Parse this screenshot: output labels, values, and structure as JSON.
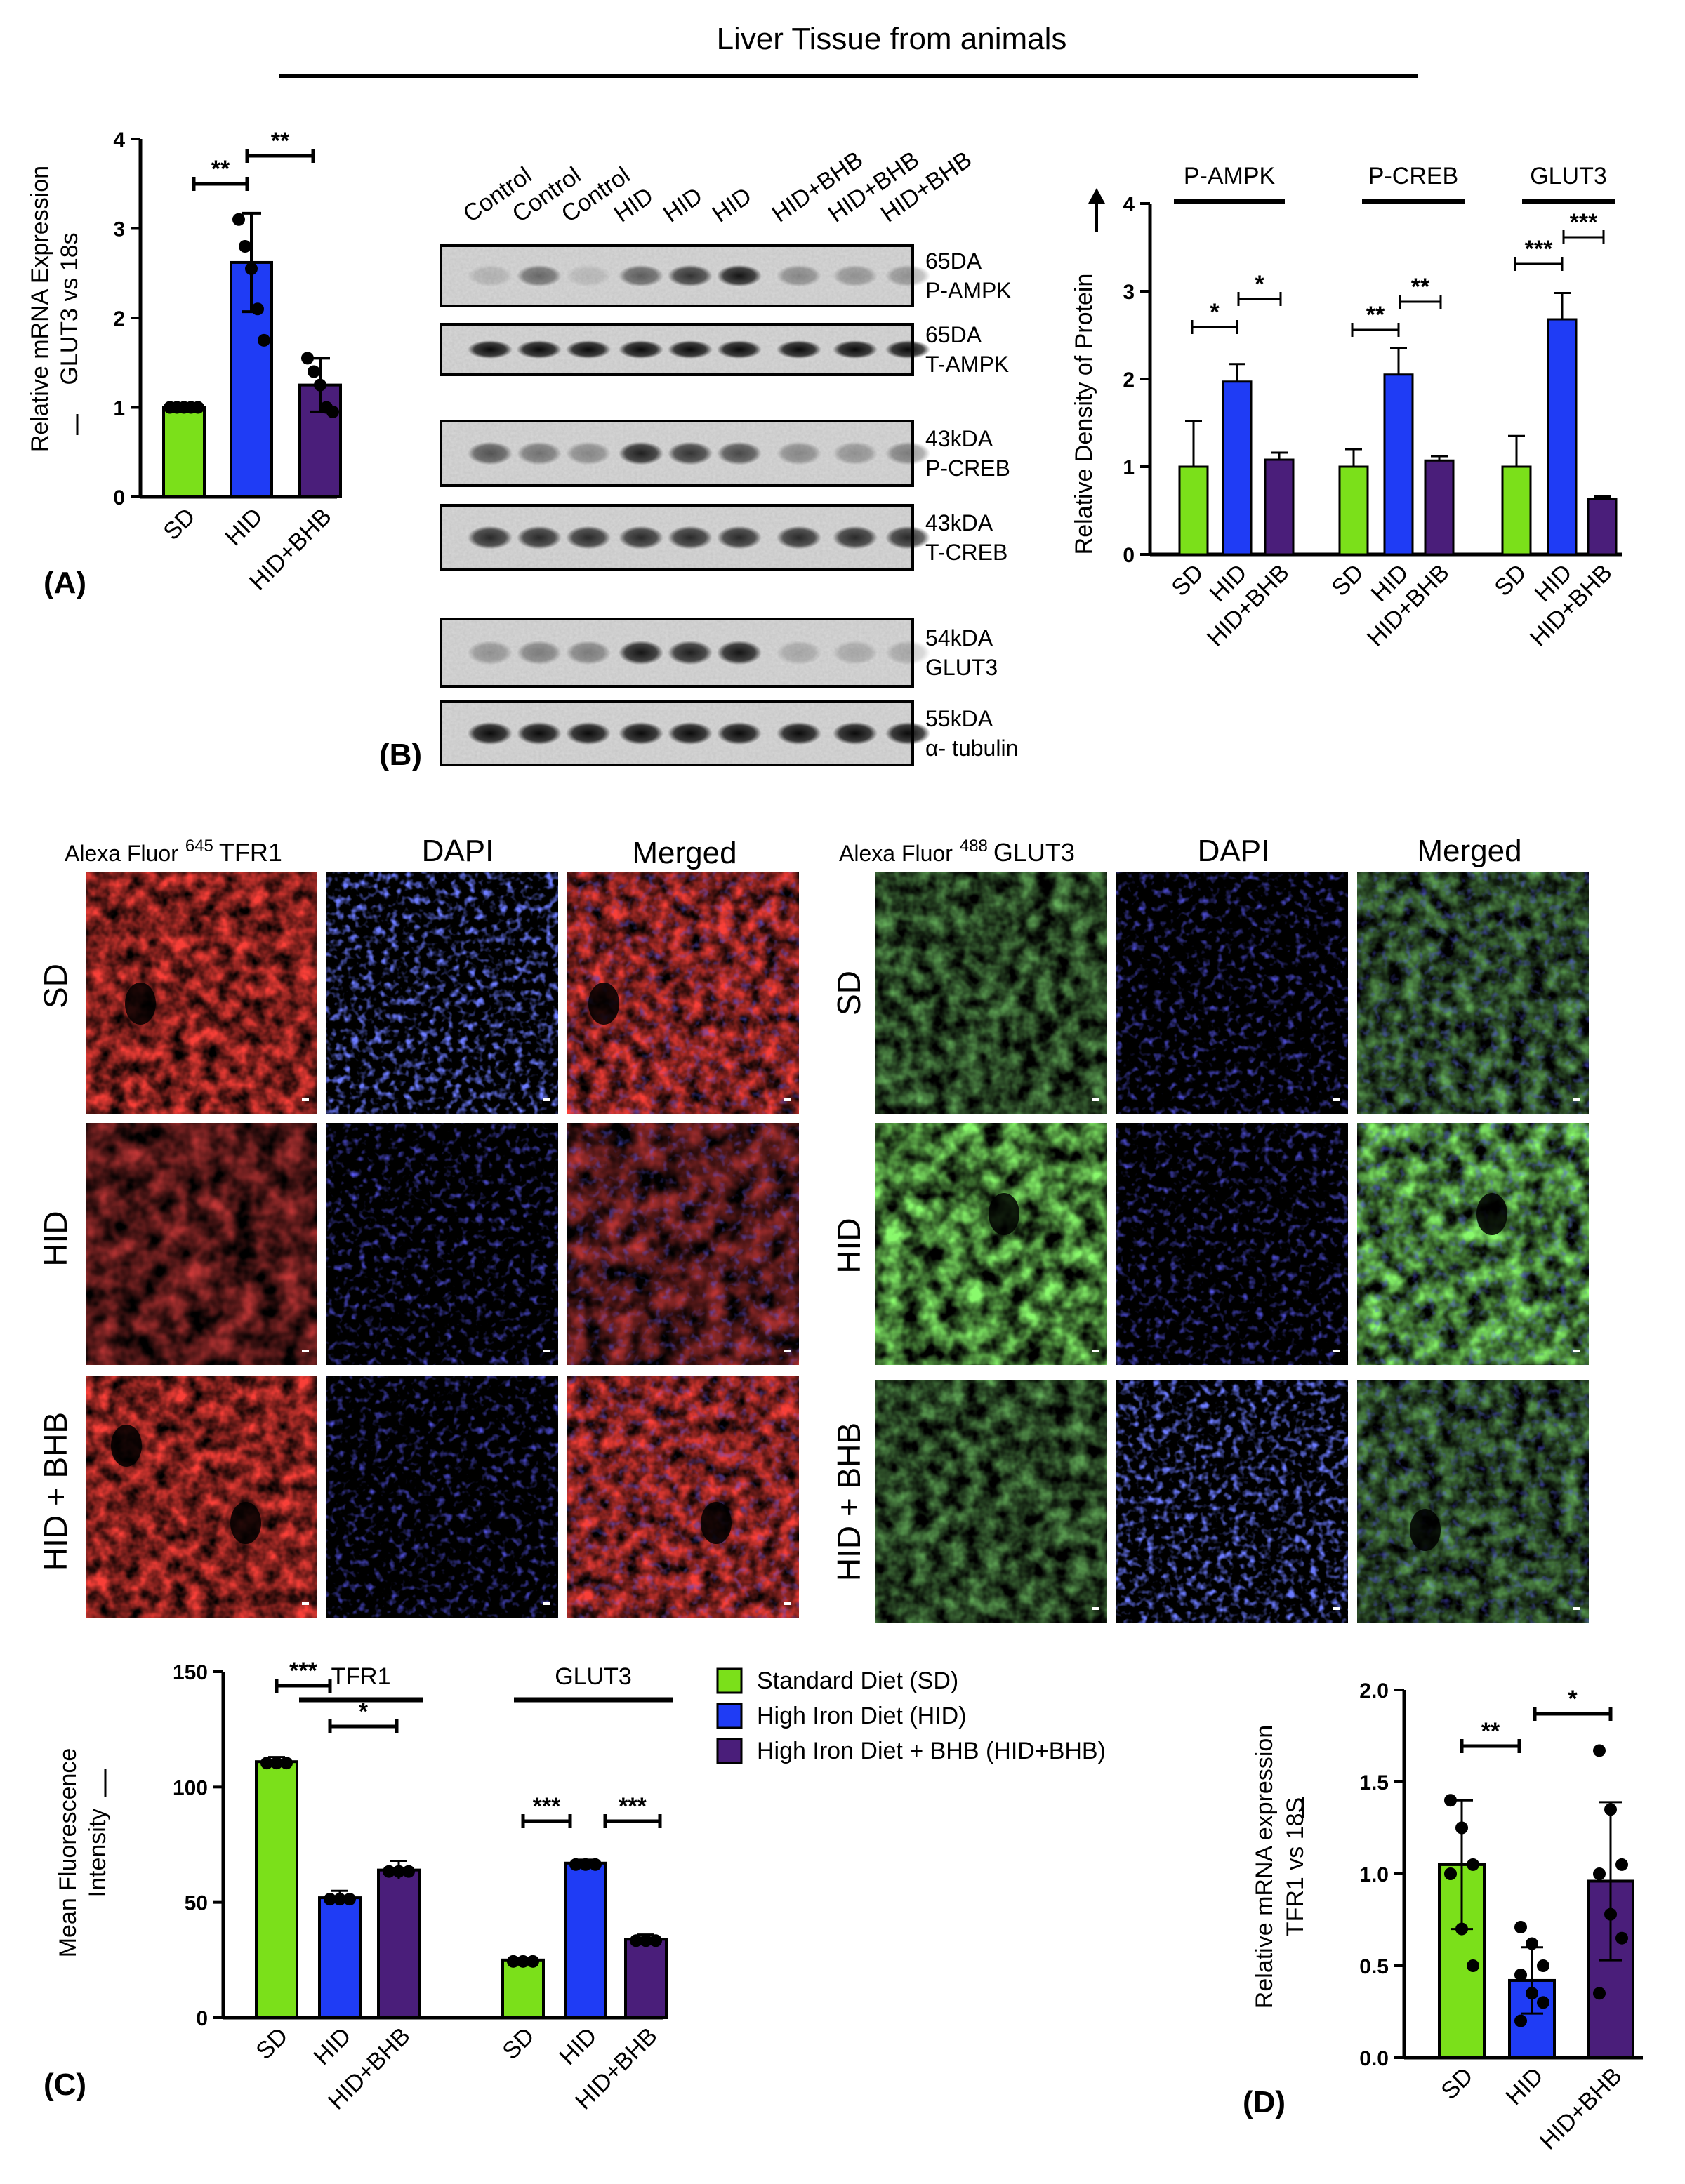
{
  "title": "Liver Tissue from animals",
  "colors": {
    "SD": "#7be01a",
    "HID": "#1f3cf5",
    "HIDBHB": "#4a1e7a"
  },
  "panelA": {
    "label": "(A)",
    "ylabel_line1": "Relative mRNA Expression",
    "ylabel_line2": "GLUT3 vs 18s",
    "yticks": [
      "0",
      "1",
      "2",
      "3",
      "4"
    ],
    "sig": [
      "**",
      "**"
    ],
    "chart_data": {
      "type": "bar",
      "categories": [
        "SD",
        "HID",
        "HID+BHB"
      ],
      "values": [
        1.0,
        2.62,
        1.25
      ],
      "errors": [
        0.0,
        0.55,
        0.3
      ],
      "points": [
        [
          1.0,
          1.0,
          1.0,
          1.0,
          1.0
        ],
        [
          3.1,
          2.8,
          2.55,
          2.1,
          1.75
        ],
        [
          1.55,
          1.4,
          1.25,
          1.0,
          0.95
        ]
      ],
      "ylim": [
        0,
        4
      ]
    }
  },
  "panelB": {
    "label": "(B)",
    "lanes": [
      "Control",
      "Control",
      "Control",
      "HID",
      "HID",
      "HID",
      "HID+BHB",
      "HID+BHB",
      "HID+BHB"
    ],
    "blots": [
      {
        "kda": "65DA",
        "name": "P-AMPK"
      },
      {
        "kda": "65DA",
        "name": "T-AMPK"
      },
      {
        "kda": "43kDA",
        "name": "P-CREB"
      },
      {
        "kda": "43kDA",
        "name": "T-CREB"
      },
      {
        "kda": "54kDA",
        "name": "GLUT3"
      },
      {
        "kda": "55kDA",
        "name": "α- tubulin"
      }
    ],
    "ylabel": "Relative Density of Protein",
    "yticks": [
      "0",
      "1",
      "2",
      "3",
      "4"
    ],
    "groups": [
      "P-AMPK",
      "P-CREB",
      "GLUT3"
    ],
    "sig": [
      [
        "*",
        "*"
      ],
      [
        "**",
        "**"
      ],
      [
        "***",
        "***"
      ]
    ],
    "chart_data": {
      "type": "bar",
      "categories": [
        "SD",
        "HID",
        "HID+BHB"
      ],
      "series": [
        {
          "name": "P-AMPK",
          "values": [
            1.0,
            1.97,
            1.08
          ],
          "errors": [
            0.52,
            0.2,
            0.08
          ]
        },
        {
          "name": "P-CREB",
          "values": [
            1.0,
            2.05,
            1.07
          ],
          "errors": [
            0.2,
            0.3,
            0.05
          ]
        },
        {
          "name": "GLUT3",
          "values": [
            1.0,
            2.68,
            0.63
          ],
          "errors": [
            0.35,
            0.3,
            0.03
          ]
        }
      ],
      "ylim": [
        0,
        4
      ]
    }
  },
  "ifLeft": {
    "head1_prefix": "Alexa Fluor",
    "head1_sup": "645",
    "head1_suffix": "TFR1",
    "head2": "DAPI",
    "head3": "Merged"
  },
  "ifRight": {
    "head1_prefix": "Alexa Fluor",
    "head1_sup": "488",
    "head1_suffix": "GLUT3",
    "head2": "DAPI",
    "head3": "Merged"
  },
  "rows": [
    "SD",
    "HID",
    "HID + BHB"
  ],
  "panelC": {
    "label": "(C)",
    "ylabel_line1": "Mean Fluorescence",
    "ylabel_line2": "Intensity",
    "yticks": [
      "0",
      "50",
      "100",
      "150"
    ],
    "groups": [
      "TFR1",
      "GLUT3"
    ],
    "sig": [
      [
        "***",
        "*"
      ],
      [
        "***",
        "***"
      ]
    ],
    "chart_data": {
      "type": "bar",
      "categories": [
        "SD",
        "HID",
        "HID+BHB"
      ],
      "series": [
        {
          "name": "TFR1",
          "values": [
            111,
            52,
            64
          ],
          "errors": [
            2,
            3,
            4
          ]
        },
        {
          "name": "GLUT3",
          "values": [
            25,
            67,
            34
          ],
          "errors": [
            1,
            1.5,
            2
          ]
        }
      ],
      "ylim": [
        0,
        150
      ]
    }
  },
  "legend": [
    {
      "label": "Standard Diet (SD)",
      "color": "#7be01a"
    },
    {
      "label": "High Iron Diet (HID)",
      "color": "#1f3cf5"
    },
    {
      "label": "High Iron Diet + BHB (HID+BHB)",
      "color": "#4a1e7a"
    }
  ],
  "panelD": {
    "label": "(D)",
    "ylabel_line1": "Relative mRNA expression",
    "ylabel_line2": "TFR1 vs 18S",
    "yticks": [
      "0.0",
      "0.5",
      "1.0",
      "1.5",
      "2.0"
    ],
    "sig": [
      "**",
      "*"
    ],
    "chart_data": {
      "type": "bar",
      "categories": [
        "SD",
        "HID",
        "HID+BHB"
      ],
      "values": [
        1.05,
        0.42,
        0.96
      ],
      "errors": [
        0.35,
        0.18,
        0.43
      ],
      "points": [
        [
          1.4,
          1.25,
          1.05,
          1.0,
          0.7,
          0.5
        ],
        [
          0.71,
          0.62,
          0.5,
          0.45,
          0.35,
          0.3,
          0.2
        ],
        [
          1.67,
          1.35,
          1.05,
          1.0,
          0.78,
          0.65,
          0.35
        ]
      ],
      "ylim": [
        0,
        2.0
      ]
    }
  }
}
